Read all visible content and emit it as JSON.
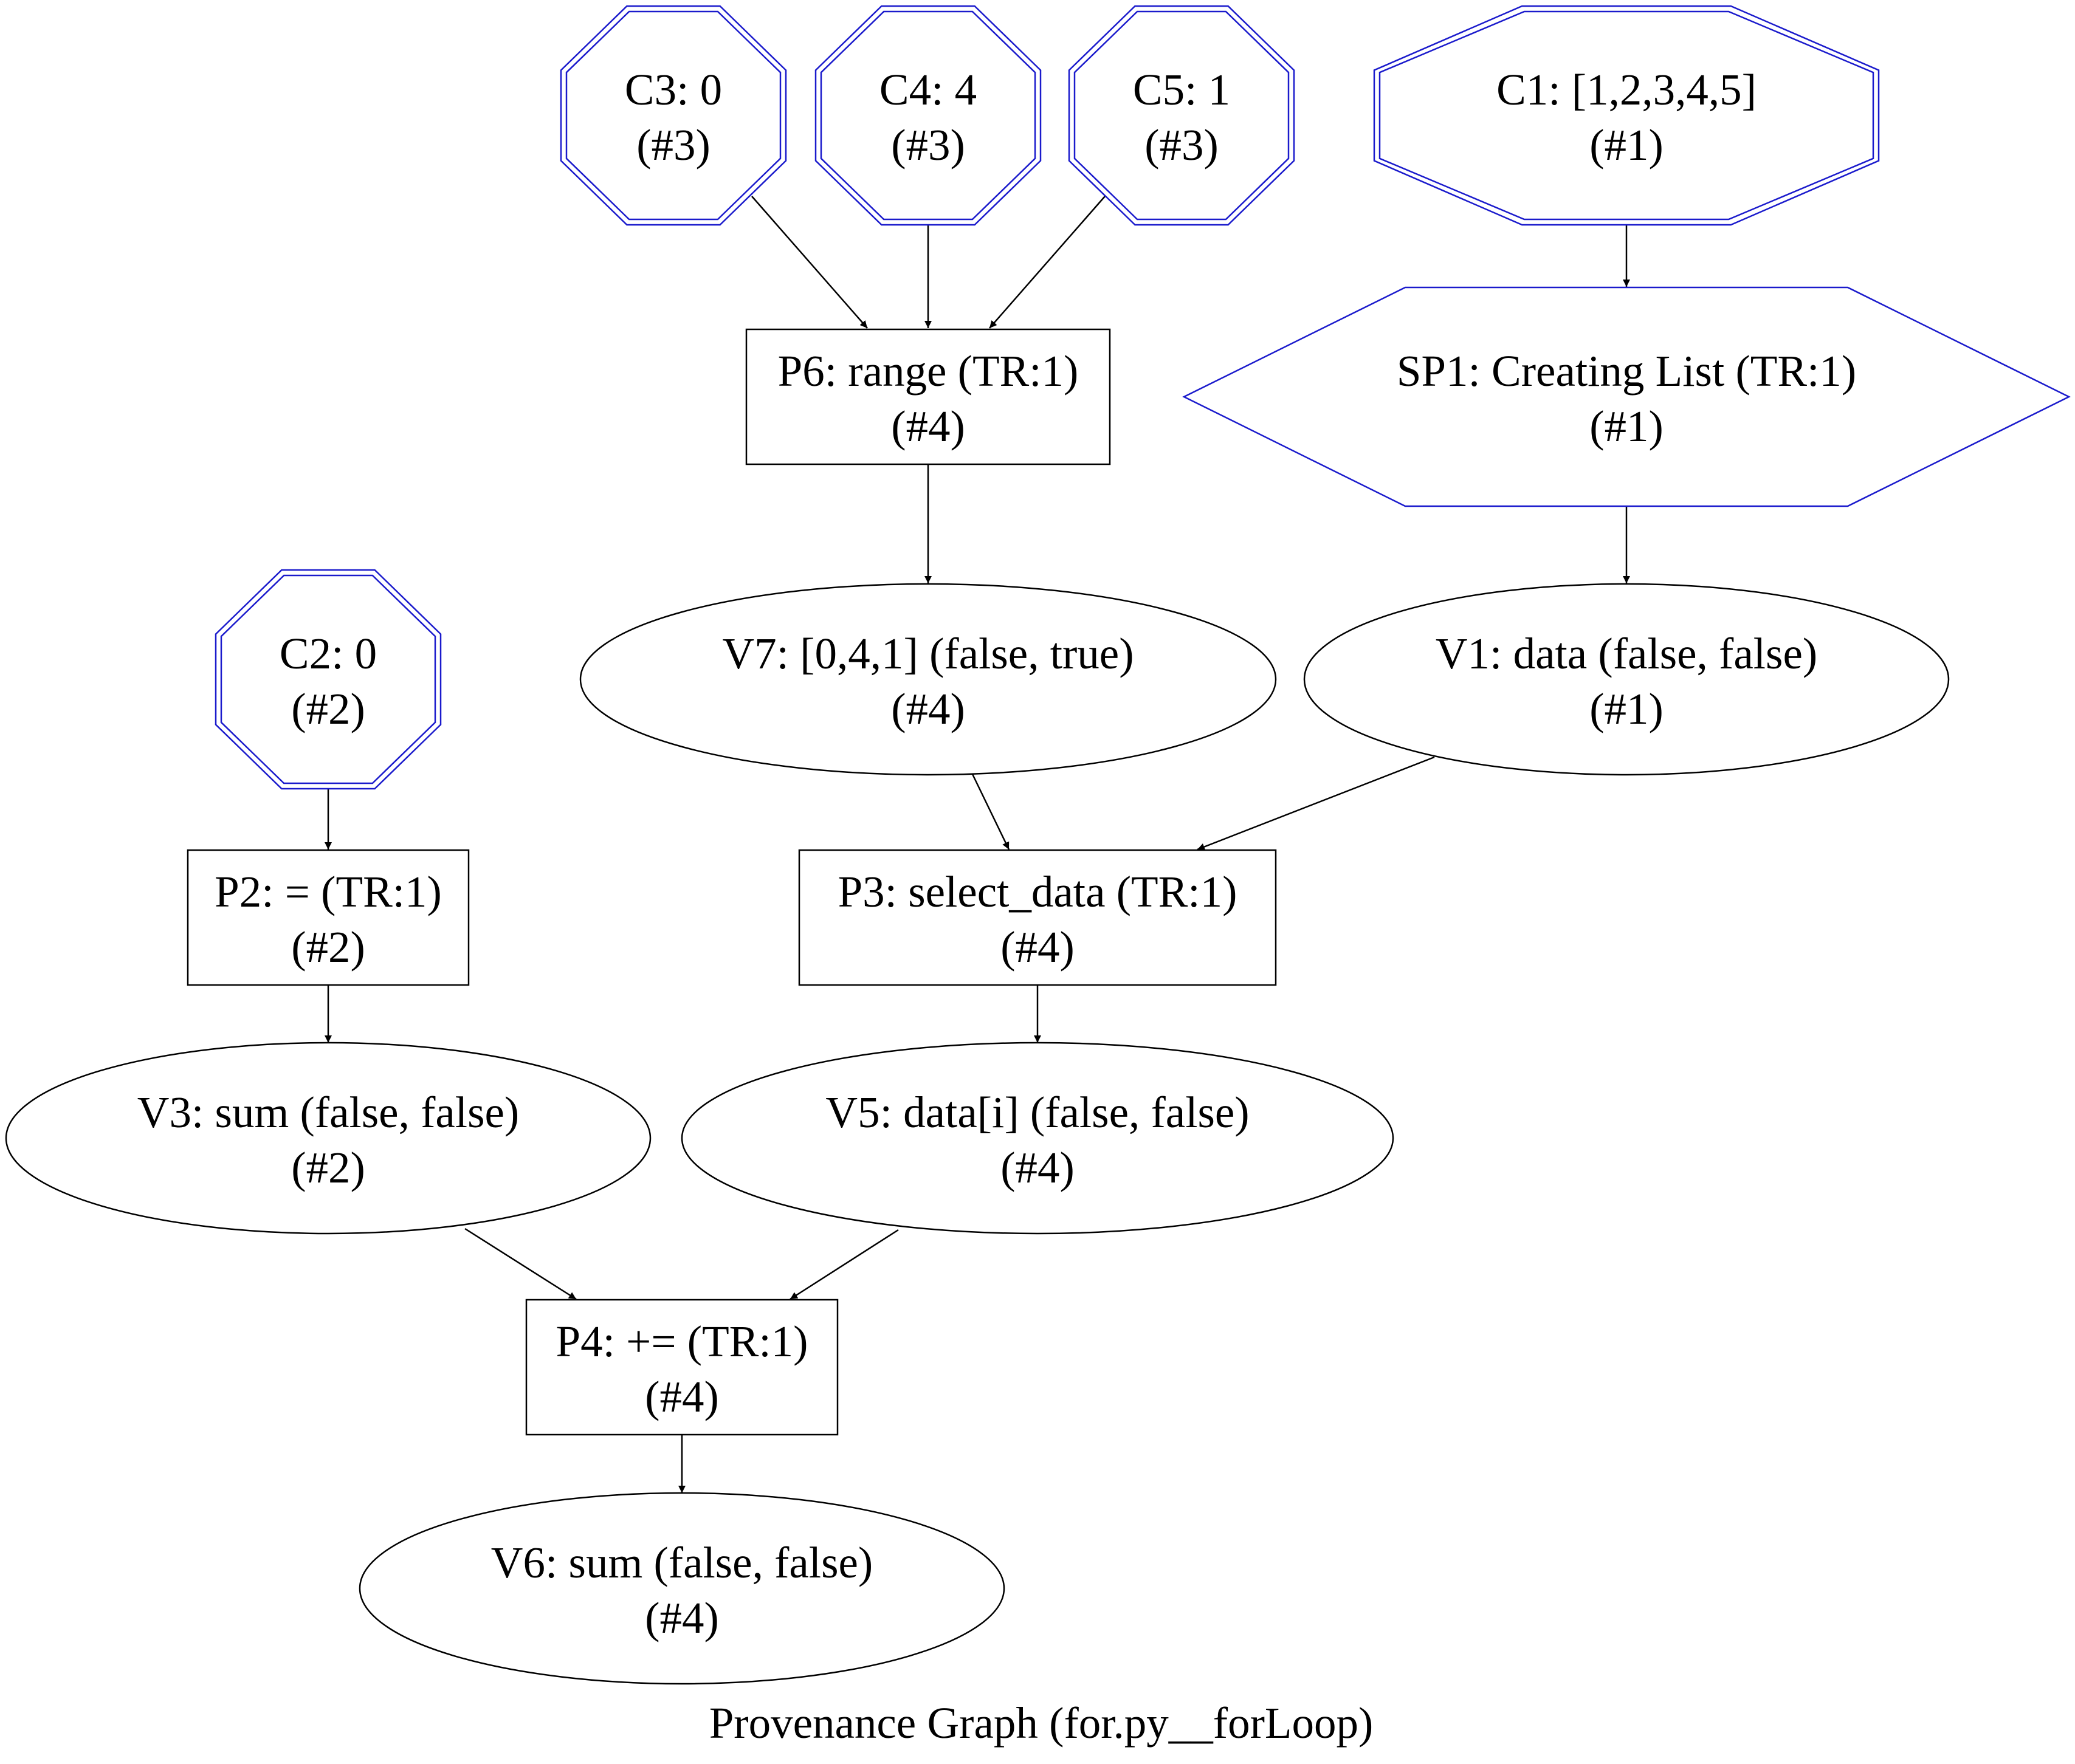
{
  "caption": "Provenance Graph (for.py__forLoop)",
  "colors": {
    "constant_outline": "#1a1acc",
    "subprocess_outline": "#1a1acc",
    "default_outline": "#000000",
    "edge": "#000000",
    "background": "#ffffff"
  },
  "nodes": [
    {
      "id": "C3",
      "kind": "constant",
      "shape": "octagon-double",
      "line1": "C3: 0",
      "line2": "(#3)"
    },
    {
      "id": "C4",
      "kind": "constant",
      "shape": "octagon-double",
      "line1": "C4: 4",
      "line2": "(#3)"
    },
    {
      "id": "C5",
      "kind": "constant",
      "shape": "octagon-double",
      "line1": "C5: 1",
      "line2": "(#3)"
    },
    {
      "id": "C1",
      "kind": "constant",
      "shape": "octagon-double",
      "line1": "C1: [1,2,3,4,5]",
      "line2": "(#1)"
    },
    {
      "id": "P6",
      "kind": "process",
      "shape": "box",
      "line1": "P6: range (TR:1)",
      "line2": "(#4)"
    },
    {
      "id": "SP1",
      "kind": "subprocess",
      "shape": "hexagon",
      "line1": "SP1: Creating List (TR:1)",
      "line2": "(#1)"
    },
    {
      "id": "C2",
      "kind": "constant",
      "shape": "octagon-double",
      "line1": "C2: 0",
      "line2": "(#2)"
    },
    {
      "id": "V7",
      "kind": "variable",
      "shape": "ellipse",
      "line1": "V7: [0,4,1] (false, true)",
      "line2": "(#4)"
    },
    {
      "id": "V1",
      "kind": "variable",
      "shape": "ellipse",
      "line1": "V1: data (false, false)",
      "line2": "(#1)"
    },
    {
      "id": "P2",
      "kind": "process",
      "shape": "box",
      "line1": "P2: = (TR:1)",
      "line2": "(#2)"
    },
    {
      "id": "P3",
      "kind": "process",
      "shape": "box",
      "line1": "P3: select_data (TR:1)",
      "line2": "(#4)"
    },
    {
      "id": "V3",
      "kind": "variable",
      "shape": "ellipse",
      "line1": "V3: sum (false, false)",
      "line2": "(#2)"
    },
    {
      "id": "V5",
      "kind": "variable",
      "shape": "ellipse",
      "line1": "V5: data[i] (false, false)",
      "line2": "(#4)"
    },
    {
      "id": "P4",
      "kind": "process",
      "shape": "box",
      "line1": "P4: += (TR:1)",
      "line2": "(#4)"
    },
    {
      "id": "V6",
      "kind": "variable",
      "shape": "ellipse",
      "line1": "V6: sum (false, false)",
      "line2": "(#4)"
    }
  ],
  "edges": [
    {
      "from": "C3",
      "to": "P6"
    },
    {
      "from": "C4",
      "to": "P6"
    },
    {
      "from": "C5",
      "to": "P6"
    },
    {
      "from": "C1",
      "to": "SP1"
    },
    {
      "from": "P6",
      "to": "V7"
    },
    {
      "from": "SP1",
      "to": "V1"
    },
    {
      "from": "C2",
      "to": "P2"
    },
    {
      "from": "V7",
      "to": "P3"
    },
    {
      "from": "V1",
      "to": "P3"
    },
    {
      "from": "P2",
      "to": "V3"
    },
    {
      "from": "P3",
      "to": "V5"
    },
    {
      "from": "V3",
      "to": "P4"
    },
    {
      "from": "V5",
      "to": "P4"
    },
    {
      "from": "P4",
      "to": "V6"
    }
  ]
}
